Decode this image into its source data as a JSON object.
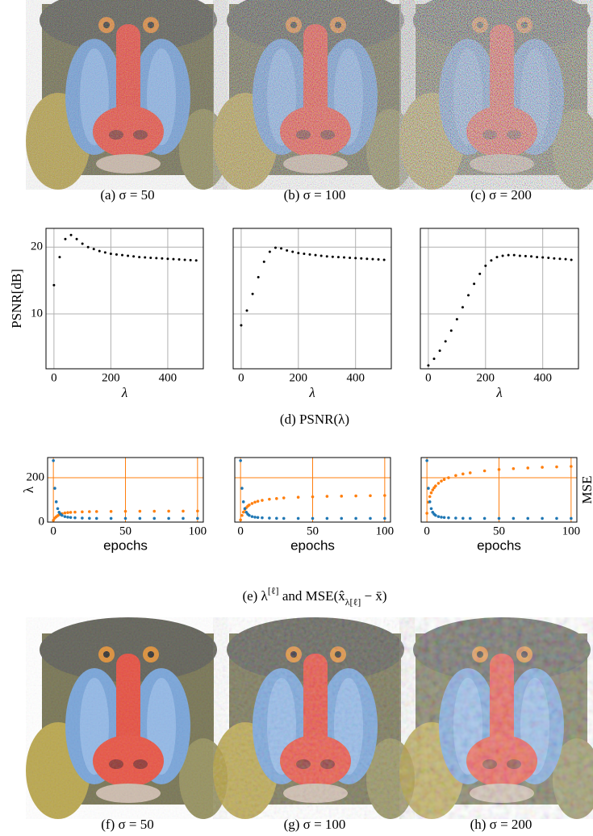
{
  "images": {
    "top_captions": [
      "(a) σ = 50",
      "(b) σ = 100",
      "(c) σ = 200"
    ],
    "bottom_captions": [
      "(f) σ = 50",
      "(g) σ = 100",
      "(h) σ = 200"
    ]
  },
  "captions": {
    "d": "(d) PSNR(λ)",
    "e": [
      "(e) λ",
      "[ℓ]",
      " and MSE(x̂",
      "λ[ℓ]",
      " − x̄)"
    ]
  },
  "chart_data": [
    {
      "type": "scatter",
      "x": [
        0,
        20,
        40,
        60,
        80,
        100,
        120,
        140,
        160,
        180,
        200,
        220,
        240,
        260,
        280,
        300,
        320,
        340,
        360,
        380,
        400,
        420,
        440,
        460,
        480,
        500
      ],
      "values": [
        14.3,
        18.5,
        21.2,
        21.8,
        21.2,
        20.5,
        20.0,
        19.7,
        19.4,
        19.2,
        19.0,
        18.9,
        18.8,
        18.7,
        18.6,
        18.5,
        18.45,
        18.4,
        18.35,
        18.3,
        18.25,
        18.2,
        18.15,
        18.1,
        18.05,
        18.0
      ],
      "color": "#000000",
      "xlim": [
        -28,
        525
      ],
      "ylim": [
        1.8,
        22.8
      ],
      "xticks": [
        0,
        200,
        400
      ],
      "yticks": [
        10,
        20
      ],
      "show_ytick_labels": true,
      "xlabel": "λ",
      "ylabel": "PSNR[dB]",
      "grid": true,
      "grid_color": "#b0b0b0"
    },
    {
      "type": "scatter",
      "x": [
        0,
        20,
        40,
        60,
        80,
        100,
        120,
        140,
        160,
        180,
        200,
        220,
        240,
        260,
        280,
        300,
        320,
        340,
        360,
        380,
        400,
        420,
        440,
        460,
        480,
        500
      ],
      "values": [
        8.3,
        10.5,
        13.0,
        15.5,
        17.8,
        19.3,
        19.9,
        19.8,
        19.5,
        19.3,
        19.1,
        19.0,
        18.9,
        18.8,
        18.7,
        18.6,
        18.55,
        18.5,
        18.45,
        18.4,
        18.35,
        18.3,
        18.25,
        18.2,
        18.15,
        18.1
      ],
      "color": "#000000",
      "xlim": [
        -28,
        525
      ],
      "ylim": [
        1.8,
        22.8
      ],
      "xticks": [
        0,
        200,
        400
      ],
      "yticks": [
        10,
        20
      ],
      "show_ytick_labels": false,
      "xlabel": "λ",
      "grid": true,
      "grid_color": "#b0b0b0"
    },
    {
      "type": "scatter",
      "x": [
        0,
        20,
        40,
        60,
        80,
        100,
        120,
        140,
        160,
        180,
        200,
        220,
        240,
        260,
        280,
        300,
        320,
        340,
        360,
        380,
        400,
        420,
        440,
        460,
        480,
        500
      ],
      "values": [
        2.3,
        3.3,
        4.5,
        5.9,
        7.5,
        9.2,
        11.0,
        12.8,
        14.5,
        16.0,
        17.2,
        18.0,
        18.5,
        18.7,
        18.8,
        18.8,
        18.7,
        18.65,
        18.6,
        18.5,
        18.45,
        18.4,
        18.3,
        18.25,
        18.2,
        18.1
      ],
      "color": "#000000",
      "xlim": [
        -28,
        525
      ],
      "ylim": [
        1.8,
        22.8
      ],
      "xticks": [
        0,
        200,
        400
      ],
      "yticks": [
        10,
        20
      ],
      "show_ytick_labels": false,
      "xlabel": "λ",
      "grid": true,
      "grid_color": "#b0b0b0"
    },
    {
      "type": "scatter",
      "x": [
        0,
        1,
        2,
        3,
        4,
        5,
        6,
        8,
        10,
        12,
        15,
        20,
        25,
        30,
        40,
        50,
        60,
        70,
        80,
        90,
        100
      ],
      "series": [
        {
          "color": "#ff7f0e",
          "values": [
            8,
            18,
            24,
            29,
            33,
            36,
            38,
            41,
            43,
            44,
            45,
            46,
            47,
            47.5,
            48,
            48.5,
            49,
            49,
            49.5,
            49.5,
            50
          ]
        },
        {
          "color": "#1f77b4",
          "axis": "y2",
          "values": [
            1.0,
            0.55,
            0.33,
            0.22,
            0.16,
            0.13,
            0.11,
            0.09,
            0.08,
            0.075,
            0.07,
            0.065,
            0.062,
            0.06,
            0.06,
            0.06,
            0.06,
            0.06,
            0.06,
            0.06,
            0.06
          ]
        }
      ],
      "xlim": [
        -4,
        104
      ],
      "ylim": [
        0,
        291
      ],
      "y2lim": [
        0,
        1.05
      ],
      "xticks": [
        0,
        50,
        100
      ],
      "yticks": [
        0,
        200
      ],
      "show_ytick_labels": true,
      "ylabel": "λ",
      "xlabel": "epochs",
      "grid": true,
      "grid_color": "#ff7f0e"
    },
    {
      "type": "scatter",
      "x": [
        0,
        1,
        2,
        3,
        4,
        5,
        6,
        8,
        10,
        12,
        15,
        20,
        25,
        30,
        40,
        50,
        60,
        70,
        80,
        90,
        100
      ],
      "series": [
        {
          "color": "#ff7f0e",
          "values": [
            10,
            30,
            45,
            57,
            65,
            72,
            77,
            84,
            90,
            94,
            98,
            103,
            106,
            109,
            112,
            114,
            116,
            117,
            118,
            119,
            120
          ]
        },
        {
          "color": "#1f77b4",
          "axis": "y2",
          "values": [
            1.0,
            0.55,
            0.33,
            0.22,
            0.16,
            0.13,
            0.11,
            0.09,
            0.08,
            0.075,
            0.07,
            0.065,
            0.062,
            0.06,
            0.06,
            0.06,
            0.06,
            0.06,
            0.06,
            0.06,
            0.06
          ]
        }
      ],
      "xlim": [
        -4,
        104
      ],
      "ylim": [
        0,
        291
      ],
      "y2lim": [
        0,
        1.05
      ],
      "xticks": [
        0,
        50,
        100
      ],
      "yticks": [
        0,
        200
      ],
      "show_ytick_labels": false,
      "xlabel": "epochs",
      "grid": true,
      "grid_color": "#ff7f0e"
    },
    {
      "type": "scatter",
      "x": [
        0,
        1,
        2,
        3,
        4,
        5,
        6,
        8,
        10,
        12,
        15,
        20,
        25,
        30,
        40,
        50,
        60,
        70,
        80,
        90,
        100
      ],
      "series": [
        {
          "color": "#ff7f0e",
          "values": [
            40,
            90,
            115,
            132,
            145,
            155,
            163,
            175,
            185,
            192,
            200,
            210,
            217,
            222,
            231,
            237,
            241,
            244,
            247,
            249,
            251
          ]
        },
        {
          "color": "#1f77b4",
          "axis": "y2",
          "values": [
            1.0,
            0.55,
            0.33,
            0.22,
            0.16,
            0.13,
            0.11,
            0.09,
            0.08,
            0.075,
            0.07,
            0.065,
            0.062,
            0.06,
            0.06,
            0.06,
            0.06,
            0.06,
            0.06,
            0.06,
            0.06
          ]
        }
      ],
      "xlim": [
        -4,
        104
      ],
      "ylim": [
        0,
        291
      ],
      "y2lim": [
        0,
        1.05
      ],
      "xticks": [
        0,
        50,
        100
      ],
      "yticks": [
        0,
        200
      ],
      "show_ytick_labels": false,
      "xlabel": "epochs",
      "y2label": "MSE",
      "grid": true,
      "grid_color": "#ff7f0e"
    }
  ]
}
